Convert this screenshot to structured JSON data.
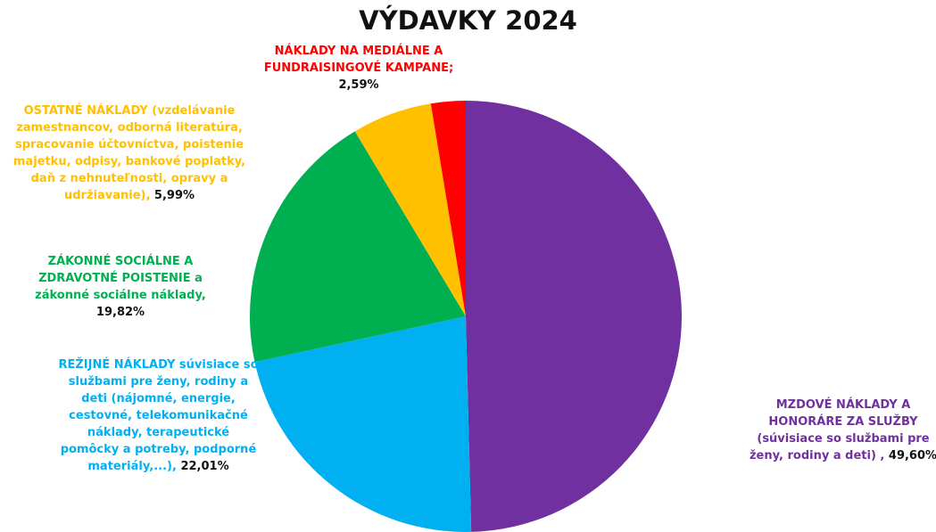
{
  "chart_data": {
    "type": "pie",
    "title": "VÝDAVKY 2024",
    "categories": [
      "MZDOVÉ NÁKLADY A HONORÁRE ZA SLUŽBY (súvisiace so službami pre ženy, rodiny a deti) ,",
      "REŽIJNÉ NÁKLADY súvisiace so službami pre ženy, rodiny a deti (nájomné, energie, cestovné, telekomunikačné náklady, terapeutické pomôcky a potreby, podporné materiály,...),",
      "ZÁKONNÉ SOCIÁLNE A ZDRAVOTNÉ POISTENIE a zákonné sociálne náklady,",
      "OSTATNÉ NÁKLADY (vzdelávanie zamestnancov, odborná literatúra, spracovanie účtovníctva, poistenie majetku, odpisy, bankové poplatky, daň z nehnuteľnosti, opravy a udržiavanie),",
      "NÁKLADY NA MEDIÁLNE A FUNDRAISINGOVÉ KAMPANE;"
    ],
    "values": [
      49.6,
      22.01,
      19.82,
      5.99,
      2.59
    ],
    "value_labels": [
      "49,60%",
      "22,01%",
      "19,82%",
      "5,99%",
      "2,59%"
    ],
    "colors": [
      "#7030a0",
      "#00b0f0",
      "#00b050",
      "#ffc000",
      "#ff0000"
    ]
  }
}
